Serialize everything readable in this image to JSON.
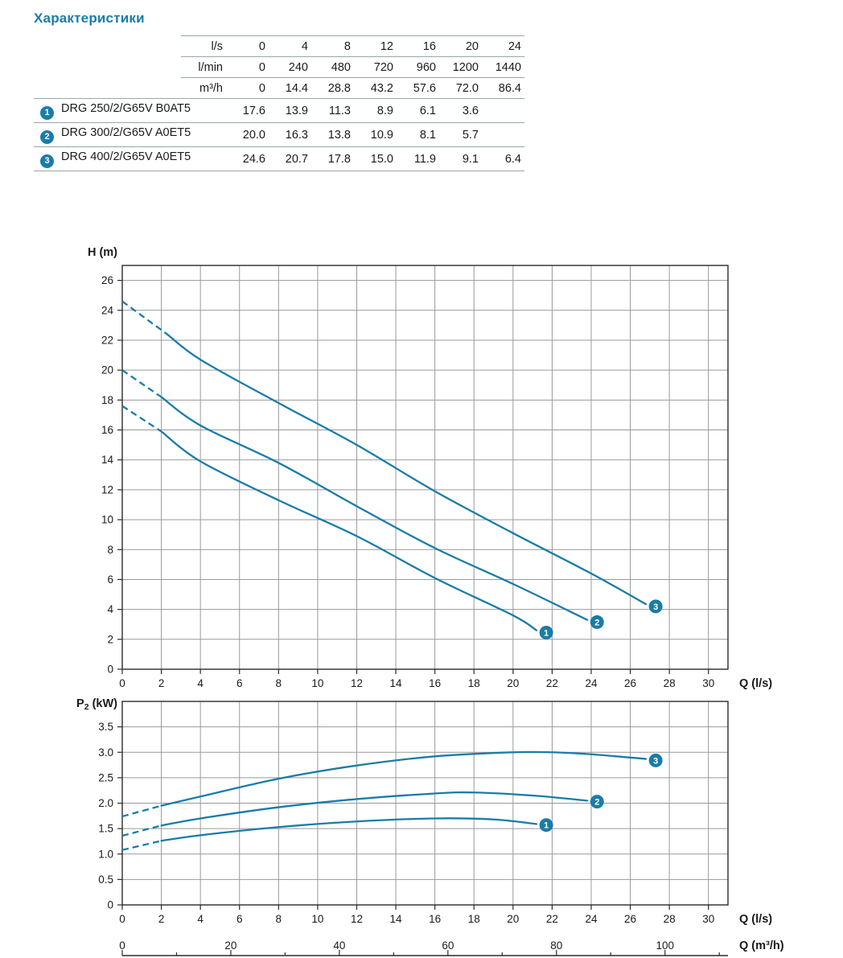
{
  "page": {
    "title": "Характеристики"
  },
  "colors": {
    "accent": "#1a7cab",
    "curve": "#1a7ca8",
    "grid": "#9a9a9a",
    "axis": "#1a1a1a",
    "table_line": "#9aa5aa"
  },
  "table": {
    "unit_rows": [
      {
        "label": "l/s",
        "values": [
          "0",
          "4",
          "8",
          "12",
          "16",
          "20",
          "24"
        ]
      },
      {
        "label": "l/min",
        "values": [
          "0",
          "240",
          "480",
          "720",
          "960",
          "1200",
          "1440"
        ]
      },
      {
        "label": "m³/h",
        "values": [
          "0",
          "14.4",
          "28.8",
          "43.2",
          "57.6",
          "72.0",
          "86.4"
        ]
      }
    ],
    "pump_rows": [
      {
        "num": "1",
        "name": "DRG 250/2/G65V B0AT5",
        "values": [
          "17.6",
          "13.9",
          "11.3",
          "8.9",
          "6.1",
          "3.6",
          ""
        ]
      },
      {
        "num": "2",
        "name": "DRG 300/2/G65V A0ET5",
        "values": [
          "20.0",
          "16.3",
          "13.8",
          "10.9",
          "8.1",
          "5.7",
          ""
        ]
      },
      {
        "num": "3",
        "name": "DRG 400/2/G65V A0ET5",
        "values": [
          "24.6",
          "20.7",
          "17.8",
          "15.0",
          "11.9",
          "9.1",
          "6.4"
        ]
      }
    ]
  },
  "chart_data": [
    {
      "type": "line",
      "name": "head-curves",
      "title": "Pump head curves",
      "ylabel": "H (m)",
      "xlabel": "Q (l/s)",
      "xlim": [
        0,
        31
      ],
      "ylim": [
        0,
        27
      ],
      "grid": true,
      "xticks": [
        0,
        2,
        4,
        6,
        8,
        10,
        12,
        14,
        16,
        18,
        20,
        22,
        24,
        26,
        28,
        30
      ],
      "xtick_labels": [
        "0",
        "2",
        "4",
        "6",
        "8",
        "10",
        "12",
        "14",
        "16",
        "18",
        "20",
        "22",
        "24",
        "26",
        "28",
        "30"
      ],
      "yticks": [
        0,
        2,
        4,
        6,
        8,
        10,
        12,
        14,
        16,
        18,
        20,
        22,
        24,
        26
      ],
      "ytick_labels": [
        "0",
        "2",
        "4",
        "6",
        "8",
        "10",
        "12",
        "14",
        "16",
        "18",
        "20",
        "22",
        "24",
        "26"
      ],
      "series": [
        {
          "name": "1",
          "dashed": [
            [
              0,
              17.6
            ],
            [
              2,
              15.9
            ]
          ],
          "points": [
            [
              2,
              15.9
            ],
            [
              4,
              13.9
            ],
            [
              8,
              11.3
            ],
            [
              12,
              8.9
            ],
            [
              16,
              6.1
            ],
            [
              20,
              3.6
            ],
            [
              21.2,
              2.6
            ]
          ],
          "marker": [
            21.7,
            2.45
          ]
        },
        {
          "name": "2",
          "dashed": [
            [
              0,
              20.0
            ],
            [
              2,
              18.2
            ]
          ],
          "points": [
            [
              2,
              18.2
            ],
            [
              4,
              16.3
            ],
            [
              8,
              13.8
            ],
            [
              12,
              10.9
            ],
            [
              16,
              8.1
            ],
            [
              20,
              5.7
            ],
            [
              23.8,
              3.3
            ]
          ],
          "marker": [
            24.3,
            3.15
          ]
        },
        {
          "name": "3",
          "dashed": [
            [
              0,
              24.6
            ],
            [
              2.3,
              22.4
            ]
          ],
          "points": [
            [
              2.3,
              22.4
            ],
            [
              4,
              20.7
            ],
            [
              8,
              17.8
            ],
            [
              12,
              15.0
            ],
            [
              16,
              11.9
            ],
            [
              20,
              9.1
            ],
            [
              24,
              6.4
            ],
            [
              26.8,
              4.35
            ]
          ],
          "marker": [
            27.3,
            4.2
          ]
        }
      ]
    },
    {
      "type": "line",
      "name": "power-curves",
      "title": "Pump power curves",
      "ylabel": "P₂ (kW)",
      "xlabel": "Q (l/s)",
      "xlim": [
        0,
        31
      ],
      "ylim": [
        0,
        4
      ],
      "grid": true,
      "xticks": [
        0,
        2,
        4,
        6,
        8,
        10,
        12,
        14,
        16,
        18,
        20,
        22,
        24,
        26,
        28,
        30
      ],
      "xtick_labels": [
        "0",
        "2",
        "4",
        "6",
        "8",
        "10",
        "12",
        "14",
        "16",
        "18",
        "20",
        "22",
        "24",
        "26",
        "28",
        "30"
      ],
      "yticks": [
        0,
        0.5,
        1,
        1.5,
        2,
        2.5,
        3,
        3.5
      ],
      "ytick_labels": [
        "0",
        "0.5",
        "1.0",
        "1.5",
        "2.0",
        "2.5",
        "3.0",
        "3.5"
      ],
      "x2": {
        "label": "Q (m³/h)",
        "ticks": [
          0,
          20,
          40,
          60,
          80,
          100
        ],
        "tick_labels": [
          "0",
          "20",
          "40",
          "60",
          "80",
          "100"
        ],
        "minor_step": 10,
        "unit_factor": 3.6
      },
      "series": [
        {
          "name": "1",
          "dashed": [
            [
              0,
              1.08
            ],
            [
              2,
              1.26
            ]
          ],
          "points": [
            [
              2,
              1.26
            ],
            [
              4,
              1.37
            ],
            [
              8,
              1.53
            ],
            [
              12,
              1.64
            ],
            [
              16,
              1.7
            ],
            [
              19,
              1.68
            ],
            [
              21.2,
              1.59
            ]
          ],
          "marker": [
            21.7,
            1.57
          ]
        },
        {
          "name": "2",
          "dashed": [
            [
              0,
              1.36
            ],
            [
              2,
              1.56
            ]
          ],
          "points": [
            [
              2,
              1.56
            ],
            [
              4,
              1.7
            ],
            [
              8,
              1.92
            ],
            [
              12,
              2.08
            ],
            [
              16,
              2.19
            ],
            [
              18,
              2.21
            ],
            [
              21,
              2.15
            ],
            [
              23.8,
              2.05
            ]
          ],
          "marker": [
            24.3,
            2.03
          ]
        },
        {
          "name": "3",
          "dashed": [
            [
              0,
              1.74
            ],
            [
              2,
              1.95
            ]
          ],
          "points": [
            [
              2,
              1.95
            ],
            [
              4,
              2.13
            ],
            [
              8,
              2.48
            ],
            [
              12,
              2.74
            ],
            [
              16,
              2.92
            ],
            [
              20,
              3.0
            ],
            [
              22,
              3.0
            ],
            [
              24,
              2.96
            ],
            [
              26.8,
              2.87
            ]
          ],
          "marker": [
            27.3,
            2.84
          ]
        }
      ]
    }
  ]
}
